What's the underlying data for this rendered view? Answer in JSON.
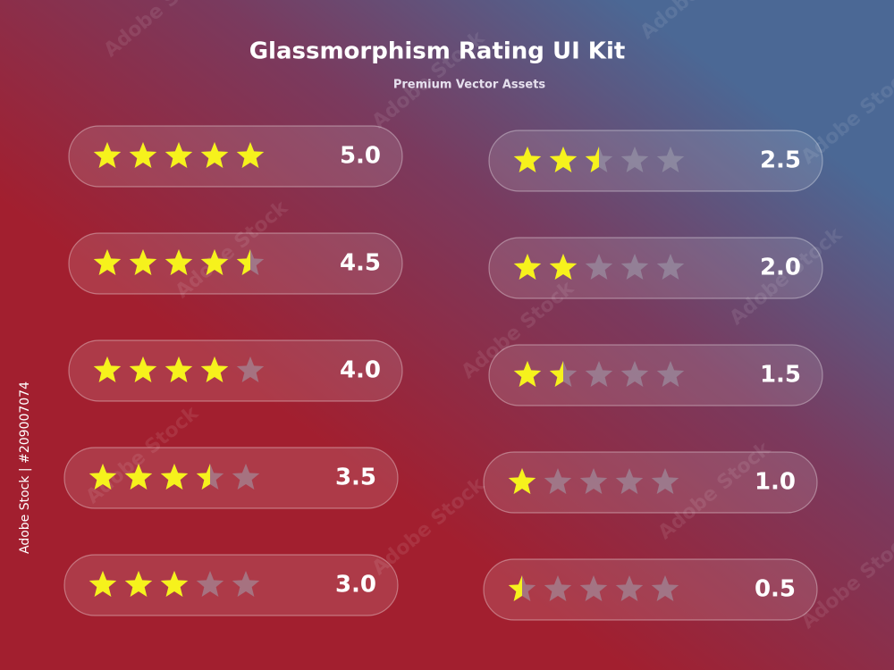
{
  "header": {
    "title": "Glassmorphism Rating UI Kit",
    "subtitle": "Premium Vector Assets"
  },
  "ratings": [
    "5.0",
    "4.5",
    "4.0",
    "3.5",
    "3.0",
    "2.5",
    "2.0",
    "1.5",
    "1.0",
    "0.5"
  ],
  "watermark": "Adobe Stock",
  "side_text": "Adobe Stock | #209007074"
}
